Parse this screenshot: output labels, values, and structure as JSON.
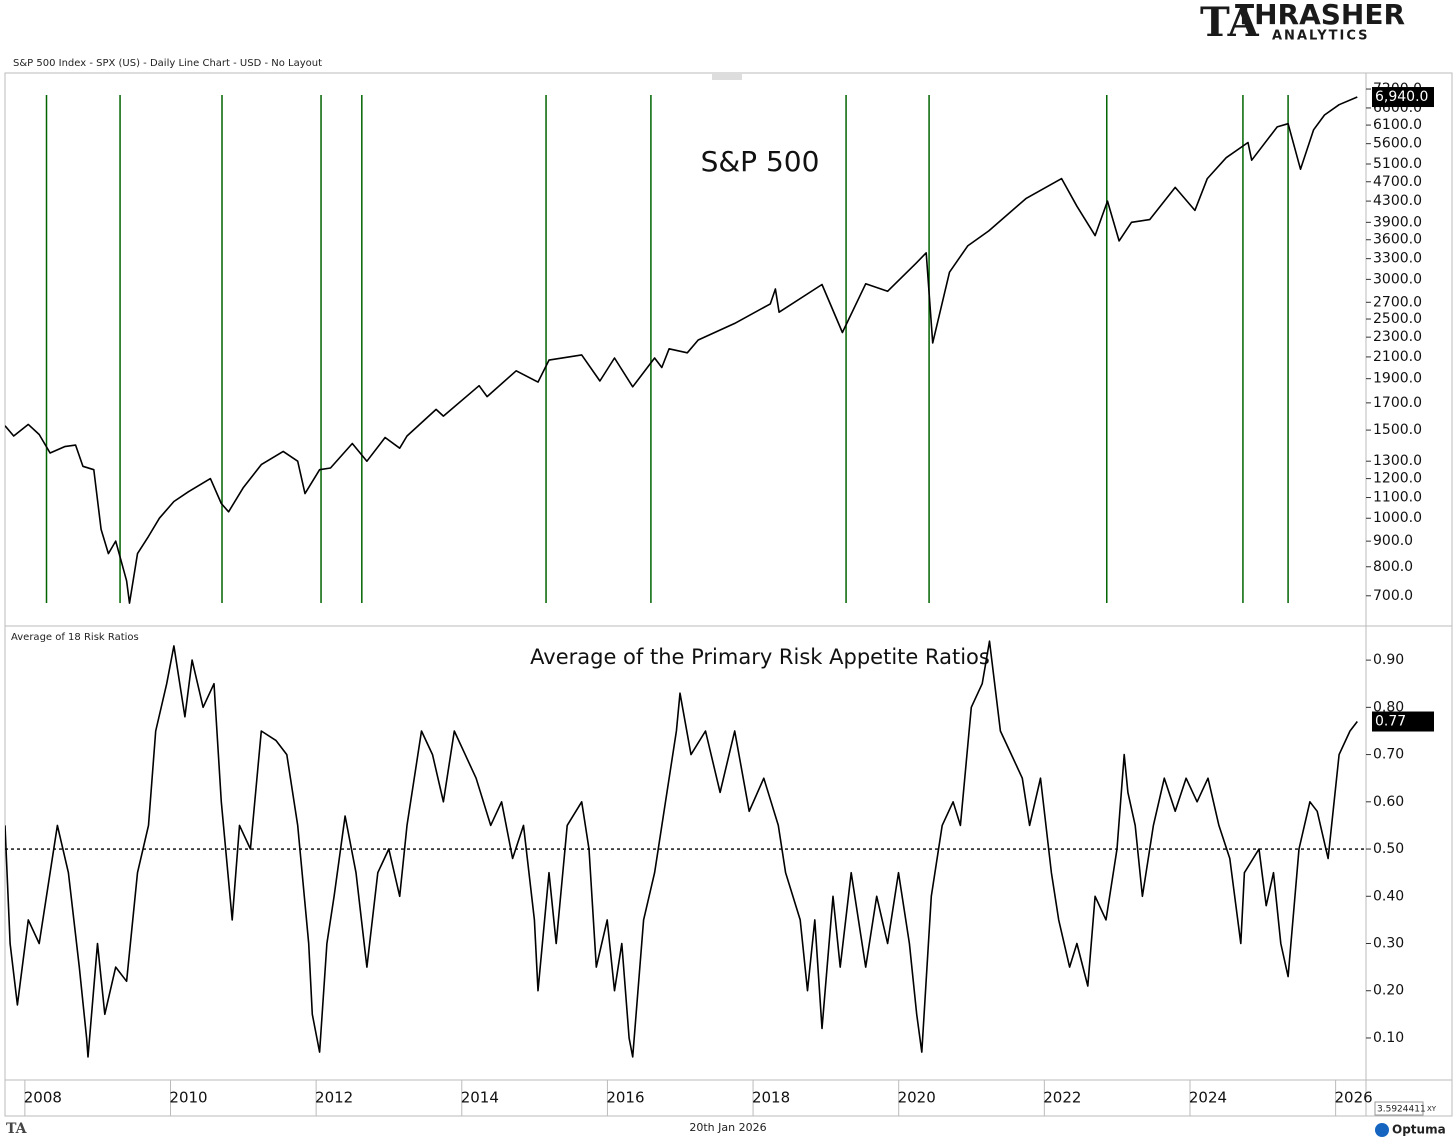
{
  "header": {
    "chart_title": "S&P 500 Index - SPX (US) - Daily Line Chart - USD - No Layout",
    "brand": "THRASHER",
    "brand_sub": "ANALYTICS",
    "date": "20th Jan 2026",
    "cursor_value": "3.5924411",
    "cursor_mode": "XY",
    "vendor": "Optuma"
  },
  "chart_data": [
    {
      "type": "line",
      "log_scale": true,
      "annotation": "S&P 500",
      "color": "#000000",
      "xlim": [
        2007.48,
        2026.17
      ],
      "ylim": [
        612,
        7680
      ],
      "yticks": [
        {
          "value": 700,
          "label": "700.0"
        },
        {
          "value": 800,
          "label": "800.0"
        },
        {
          "value": 900,
          "label": "900.0"
        },
        {
          "value": 1000,
          "label": "1000.0"
        },
        {
          "value": 1100,
          "label": "1100.0"
        },
        {
          "value": 1200,
          "label": "1200.0"
        },
        {
          "value": 1300,
          "label": "1300.0"
        },
        {
          "value": 1500,
          "label": "1500.0"
        },
        {
          "value": 1700,
          "label": "1700.0"
        },
        {
          "value": 1900,
          "label": "1900.0"
        },
        {
          "value": 2100,
          "label": "2100.0"
        },
        {
          "value": 2300,
          "label": "2300.0"
        },
        {
          "value": 2500,
          "label": "2500.0"
        },
        {
          "value": 2700,
          "label": "2700.0"
        },
        {
          "value": 3000,
          "label": "3000.0"
        },
        {
          "value": 3300,
          "label": "3300.0"
        },
        {
          "value": 3600,
          "label": "3600.0"
        },
        {
          "value": 3900,
          "label": "3900.0"
        },
        {
          "value": 4300,
          "label": "4300.0"
        },
        {
          "value": 4700,
          "label": "4700.0"
        },
        {
          "value": 5100,
          "label": "5100.0"
        },
        {
          "value": 5600,
          "label": "5600.0"
        },
        {
          "value": 6100,
          "label": "6100.0"
        },
        {
          "value": 6600,
          "label": "6600.0"
        },
        {
          "value": 7200,
          "label": "7200.0"
        }
      ],
      "last_label": {
        "value": 6940,
        "label": "6,940.0"
      },
      "vlines": [
        2008.05,
        2009.06,
        2010.46,
        2011.82,
        2012.38,
        2014.91,
        2016.35,
        2019.03,
        2020.17,
        2022.61,
        2024.48,
        2025.1
      ],
      "vline_color": "#006400",
      "x": [
        2007.48,
        2007.6,
        2007.8,
        2007.95,
        2008.1,
        2008.3,
        2008.45,
        2008.55,
        2008.7,
        2008.8,
        2008.9,
        2009.0,
        2009.15,
        2009.19,
        2009.3,
        2009.45,
        2009.6,
        2009.8,
        2010.0,
        2010.3,
        2010.45,
        2010.55,
        2010.75,
        2011.0,
        2011.3,
        2011.5,
        2011.6,
        2011.8,
        2011.95,
        2012.25,
        2012.45,
        2012.7,
        2012.9,
        2013.0,
        2013.4,
        2013.5,
        2013.99,
        2014.1,
        2014.5,
        2014.8,
        2014.95,
        2015.4,
        2015.65,
        2015.85,
        2016.1,
        2016.4,
        2016.5,
        2016.6,
        2016.85,
        2017.0,
        2017.5,
        2017.99,
        2018.06,
        2018.11,
        2018.7,
        2018.98,
        2019.3,
        2019.6,
        2019.99,
        2020.13,
        2020.22,
        2020.45,
        2020.7,
        2020.99,
        2021.5,
        2021.99,
        2022.2,
        2022.45,
        2022.62,
        2022.78,
        2022.95,
        2023.2,
        2023.55,
        2023.82,
        2023.99,
        2024.25,
        2024.55,
        2024.6,
        2024.95,
        2025.1,
        2025.27,
        2025.45,
        2025.6,
        2025.8,
        2026.05
      ],
      "values": [
        1530,
        1460,
        1540,
        1470,
        1350,
        1390,
        1400,
        1270,
        1250,
        950,
        850,
        900,
        750,
        677,
        850,
        920,
        1000,
        1080,
        1130,
        1200,
        1070,
        1030,
        1150,
        1280,
        1360,
        1300,
        1120,
        1250,
        1260,
        1410,
        1300,
        1450,
        1380,
        1460,
        1650,
        1600,
        1840,
        1750,
        1970,
        1870,
        2070,
        2120,
        1880,
        2090,
        1830,
        2090,
        2000,
        2180,
        2140,
        2270,
        2450,
        2680,
        2870,
        2580,
        2930,
        2350,
        2940,
        2840,
        3230,
        3390,
        2240,
        3100,
        3500,
        3750,
        4350,
        4770,
        4200,
        3670,
        4300,
        3580,
        3900,
        3950,
        4580,
        4120,
        4770,
        5250,
        5630,
        5190,
        6050,
        6140,
        4980,
        5970,
        6390,
        6700,
        6940
      ]
    },
    {
      "type": "line",
      "log_scale": false,
      "title": "Average of 18 Risk Ratios",
      "annotation": "Average of the Primary Risk Appetite Ratios",
      "color": "#000000",
      "xlim": [
        2007.48,
        2026.17
      ],
      "xticks": [
        2008,
        2010,
        2012,
        2014,
        2016,
        2018,
        2020,
        2022,
        2024,
        2026
      ],
      "ylim": [
        0.011,
        0.968
      ],
      "yticks": [
        {
          "value": 0.1,
          "label": "0.10"
        },
        {
          "value": 0.2,
          "label": "0.20"
        },
        {
          "value": 0.3,
          "label": "0.30"
        },
        {
          "value": 0.4,
          "label": "0.40"
        },
        {
          "value": 0.5,
          "label": "0.50"
        },
        {
          "value": 0.6,
          "label": "0.60"
        },
        {
          "value": 0.7,
          "label": "0.70"
        },
        {
          "value": 0.8,
          "label": "0.80"
        },
        {
          "value": 0.9,
          "label": "0.90"
        }
      ],
      "last_label": {
        "value": 0.77,
        "label": "0.77"
      },
      "hline": {
        "value": 0.5,
        "style": "dashed"
      },
      "x": [
        2007.48,
        2007.55,
        2007.65,
        2007.8,
        2007.95,
        2008.1,
        2008.2,
        2008.35,
        2008.5,
        2008.6,
        2008.62,
        2008.75,
        2008.85,
        2009.0,
        2009.15,
        2009.3,
        2009.45,
        2009.55,
        2009.7,
        2009.8,
        2009.95,
        2010.05,
        2010.2,
        2010.35,
        2010.45,
        2010.6,
        2010.7,
        2010.85,
        2011.0,
        2011.2,
        2011.35,
        2011.5,
        2011.65,
        2011.7,
        2011.8,
        2011.9,
        2012.0,
        2012.15,
        2012.3,
        2012.45,
        2012.6,
        2012.75,
        2012.9,
        2013.0,
        2013.2,
        2013.35,
        2013.5,
        2013.65,
        2013.8,
        2013.95,
        2014.15,
        2014.3,
        2014.45,
        2014.6,
        2014.75,
        2014.8,
        2014.95,
        2015.05,
        2015.2,
        2015.4,
        2015.5,
        2015.6,
        2015.75,
        2015.85,
        2015.95,
        2016.05,
        2016.1,
        2016.25,
        2016.4,
        2016.55,
        2016.7,
        2016.75,
        2016.9,
        2017.1,
        2017.3,
        2017.5,
        2017.7,
        2017.9,
        2018.1,
        2018.2,
        2018.4,
        2018.5,
        2018.6,
        2018.7,
        2018.85,
        2018.95,
        2019.1,
        2019.3,
        2019.45,
        2019.6,
        2019.75,
        2019.9,
        2020.0,
        2020.07,
        2020.2,
        2020.35,
        2020.5,
        2020.6,
        2020.75,
        2020.9,
        2021.0,
        2021.15,
        2021.3,
        2021.45,
        2021.55,
        2021.7,
        2021.85,
        2021.95,
        2022.1,
        2022.2,
        2022.35,
        2022.45,
        2022.6,
        2022.75,
        2022.85,
        2022.9,
        2023.0,
        2023.1,
        2023.25,
        2023.4,
        2023.55,
        2023.7,
        2023.85,
        2024.0,
        2024.15,
        2024.3,
        2024.45,
        2024.5,
        2024.7,
        2024.8,
        2024.9,
        2025.0,
        2025.1,
        2025.25,
        2025.4,
        2025.5,
        2025.65,
        2025.8,
        2025.95,
        2026.05
      ],
      "values": [
        0.55,
        0.3,
        0.17,
        0.35,
        0.3,
        0.45,
        0.55,
        0.45,
        0.25,
        0.1,
        0.06,
        0.3,
        0.15,
        0.25,
        0.22,
        0.45,
        0.55,
        0.75,
        0.85,
        0.93,
        0.78,
        0.9,
        0.8,
        0.85,
        0.6,
        0.35,
        0.55,
        0.5,
        0.75,
        0.73,
        0.7,
        0.55,
        0.3,
        0.15,
        0.07,
        0.3,
        0.4,
        0.57,
        0.45,
        0.25,
        0.45,
        0.5,
        0.4,
        0.55,
        0.75,
        0.7,
        0.6,
        0.75,
        0.7,
        0.65,
        0.55,
        0.6,
        0.48,
        0.55,
        0.35,
        0.2,
        0.45,
        0.3,
        0.55,
        0.6,
        0.5,
        0.25,
        0.35,
        0.2,
        0.3,
        0.1,
        0.06,
        0.35,
        0.45,
        0.6,
        0.75,
        0.83,
        0.7,
        0.75,
        0.62,
        0.75,
        0.58,
        0.65,
        0.55,
        0.45,
        0.35,
        0.2,
        0.35,
        0.12,
        0.4,
        0.25,
        0.45,
        0.25,
        0.4,
        0.3,
        0.45,
        0.3,
        0.15,
        0.07,
        0.4,
        0.55,
        0.6,
        0.55,
        0.8,
        0.85,
        0.94,
        0.75,
        0.7,
        0.65,
        0.55,
        0.65,
        0.45,
        0.35,
        0.25,
        0.3,
        0.21,
        0.4,
        0.35,
        0.5,
        0.7,
        0.62,
        0.55,
        0.4,
        0.55,
        0.65,
        0.58,
        0.65,
        0.6,
        0.65,
        0.55,
        0.48,
        0.3,
        0.45,
        0.5,
        0.38,
        0.45,
        0.3,
        0.23,
        0.5,
        0.6,
        0.58,
        0.48,
        0.7,
        0.75,
        0.77
      ]
    }
  ]
}
